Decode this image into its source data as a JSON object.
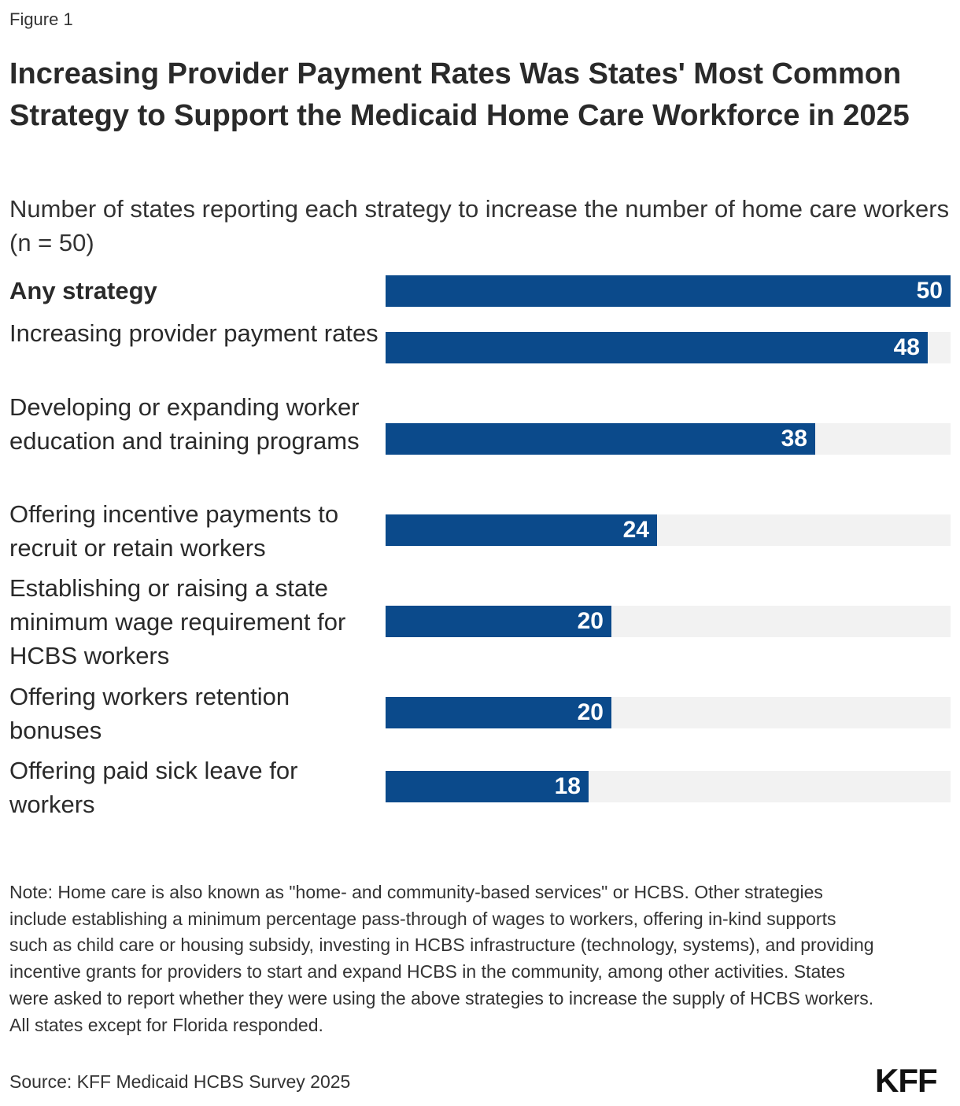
{
  "figure_label": "Figure 1",
  "title": "Increasing Provider Payment Rates Was States' Most Common Strategy to Support the Medicaid Home Care Workforce in 2025",
  "subtitle": "Number of states reporting each strategy to increase the number of home care workers (n = 50)",
  "colors": {
    "bar": "#0b4a8b",
    "track": "#f2f2f2"
  },
  "chart_data": {
    "type": "bar",
    "orientation": "horizontal",
    "categories": [
      "Any strategy",
      "Increasing provider payment rates",
      "Developing or expanding worker education and training programs",
      "Offering incentive payments to recruit or retain workers",
      "Establishing or raising a state minimum wage requirement for HCBS workers",
      "Offering workers retention bonuses",
      "Offering paid sick leave for workers"
    ],
    "values": [
      50,
      48,
      38,
      24,
      20,
      20,
      18
    ],
    "xlim": [
      0,
      50
    ],
    "grid": false,
    "data_labels": true
  },
  "note": "Note: Home care is also known as \"home- and community-based services\" or HCBS. Other strategies include establishing a minimum percentage pass-through of wages to workers, offering in-kind supports such as child care or housing subsidy, investing in HCBS infrastructure (technology, systems), and providing incentive grants for providers to start and expand HCBS in the community, among other activities. States were asked to report whether they were using the above strategies to increase the supply of HCBS workers. All states except for Florida responded.",
  "source": "Source: KFF Medicaid HCBS Survey 2025",
  "logo": "KFF"
}
